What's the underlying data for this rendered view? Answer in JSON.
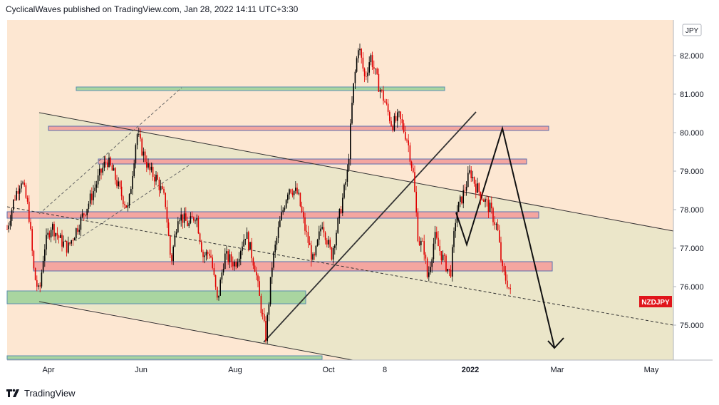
{
  "header": {
    "text": "CyclicalWaves published on TradingView.com, Jan 28, 2022 14:11 UTC+3:30"
  },
  "footer": {
    "brand": "TradingView"
  },
  "colors": {
    "background": "#fde7d2",
    "candle_up": "#000000",
    "candle_down": "#e00000",
    "channel_fill": "#eae6c8",
    "red_zone": "#f4a6a0",
    "red_zone_border": "#5a6fb0",
    "green_zone": "#a9d5a0",
    "green_zone_border": "#5a8fb0",
    "symbol_label": "#e0151b"
  },
  "chart_data": {
    "type": "candlestick",
    "symbol": "NZDJPY",
    "currency": "JPY",
    "x_ticks": [
      "Apr",
      "Jun",
      "Aug",
      "Oct",
      "8",
      "2022",
      "Mar",
      "May"
    ],
    "y_ticks": [
      "82.000",
      "81.000",
      "80.000",
      "79.000",
      "78.000",
      "77.000",
      "76.000",
      "75.000"
    ],
    "y_range": [
      74.1,
      83.0
    ],
    "last_price_label": "NZDJPY",
    "last_price": 75.7,
    "price_path": [
      {
        "x": 10,
        "y": 77.5
      },
      {
        "x": 20,
        "y": 78.3
      },
      {
        "x": 30,
        "y": 78.8
      },
      {
        "x": 40,
        "y": 78.0
      },
      {
        "x": 48,
        "y": 76.3
      },
      {
        "x": 55,
        "y": 75.8
      },
      {
        "x": 62,
        "y": 77.0
      },
      {
        "x": 72,
        "y": 77.6
      },
      {
        "x": 85,
        "y": 77.2
      },
      {
        "x": 95,
        "y": 77.0
      },
      {
        "x": 110,
        "y": 77.6
      },
      {
        "x": 125,
        "y": 78.2
      },
      {
        "x": 140,
        "y": 78.9
      },
      {
        "x": 150,
        "y": 79.3
      },
      {
        "x": 160,
        "y": 78.9
      },
      {
        "x": 170,
        "y": 78.4
      },
      {
        "x": 180,
        "y": 78.0
      },
      {
        "x": 192,
        "y": 80.0
      },
      {
        "x": 200,
        "y": 79.5
      },
      {
        "x": 210,
        "y": 79.0
      },
      {
        "x": 220,
        "y": 78.8
      },
      {
        "x": 232,
        "y": 78.2
      },
      {
        "x": 240,
        "y": 76.6
      },
      {
        "x": 250,
        "y": 77.9
      },
      {
        "x": 265,
        "y": 77.6
      },
      {
        "x": 275,
        "y": 77.9
      },
      {
        "x": 285,
        "y": 76.8
      },
      {
        "x": 295,
        "y": 76.9
      },
      {
        "x": 305,
        "y": 75.6
      },
      {
        "x": 315,
        "y": 76.8
      },
      {
        "x": 330,
        "y": 76.6
      },
      {
        "x": 345,
        "y": 77.4
      },
      {
        "x": 358,
        "y": 76.5
      },
      {
        "x": 365,
        "y": 75.6
      },
      {
        "x": 373,
        "y": 74.7
      },
      {
        "x": 382,
        "y": 76.6
      },
      {
        "x": 392,
        "y": 77.6
      },
      {
        "x": 405,
        "y": 78.6
      },
      {
        "x": 418,
        "y": 78.4
      },
      {
        "x": 428,
        "y": 77.5
      },
      {
        "x": 440,
        "y": 76.6
      },
      {
        "x": 452,
        "y": 77.7
      },
      {
        "x": 465,
        "y": 76.8
      },
      {
        "x": 478,
        "y": 78.0
      },
      {
        "x": 488,
        "y": 79.0
      },
      {
        "x": 495,
        "y": 81.0
      },
      {
        "x": 503,
        "y": 82.3
      },
      {
        "x": 512,
        "y": 81.4
      },
      {
        "x": 520,
        "y": 82.0
      },
      {
        "x": 530,
        "y": 81.3
      },
      {
        "x": 540,
        "y": 80.8
      },
      {
        "x": 550,
        "y": 80.2
      },
      {
        "x": 560,
        "y": 80.4
      },
      {
        "x": 572,
        "y": 79.8
      },
      {
        "x": 580,
        "y": 78.9
      },
      {
        "x": 587,
        "y": 77.2
      },
      {
        "x": 595,
        "y": 77.0
      },
      {
        "x": 600,
        "y": 76.2
      },
      {
        "x": 610,
        "y": 77.3
      },
      {
        "x": 620,
        "y": 76.8
      },
      {
        "x": 632,
        "y": 76.3
      },
      {
        "x": 640,
        "y": 77.9
      },
      {
        "x": 650,
        "y": 78.4
      },
      {
        "x": 660,
        "y": 79.0
      },
      {
        "x": 668,
        "y": 78.6
      },
      {
        "x": 678,
        "y": 78.3
      },
      {
        "x": 688,
        "y": 78.0
      },
      {
        "x": 698,
        "y": 77.5
      },
      {
        "x": 705,
        "y": 76.4
      },
      {
        "x": 712,
        "y": 76.1
      },
      {
        "x": 718,
        "y": 75.7
      }
    ]
  }
}
